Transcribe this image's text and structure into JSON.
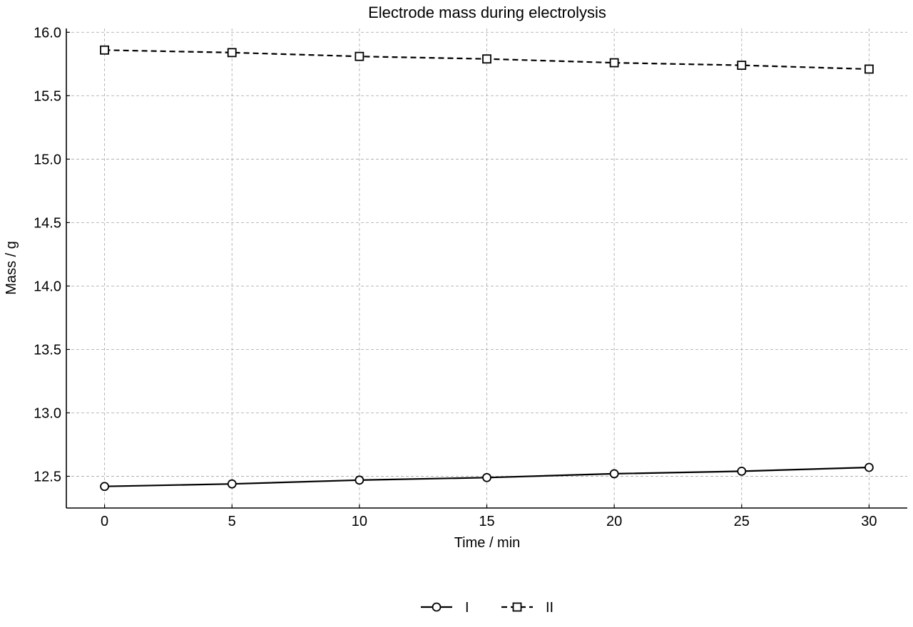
{
  "chart_data": {
    "type": "line",
    "title": "Electrode mass during electrolysis",
    "xlabel": "Time / min",
    "ylabel": "Mass / g",
    "x": [
      0,
      5,
      10,
      15,
      20,
      25,
      30
    ],
    "xticks": [
      0,
      5,
      10,
      15,
      20,
      25,
      30
    ],
    "yticks": [
      12.5,
      13.0,
      13.5,
      14.0,
      14.5,
      15.0,
      15.5,
      16.0
    ],
    "xlim": [
      -1.5,
      31.5
    ],
    "ylim": [
      12.25,
      16.03
    ],
    "grid": true,
    "legend_position": "bottom-center",
    "series": [
      {
        "name": "I",
        "values": [
          12.42,
          12.44,
          12.47,
          12.49,
          12.52,
          12.54,
          12.57
        ],
        "line_style": "solid",
        "marker": "circle",
        "color": "#000000"
      },
      {
        "name": "II",
        "values": [
          15.86,
          15.84,
          15.81,
          15.79,
          15.76,
          15.74,
          15.71
        ],
        "line_style": "dashed",
        "marker": "square",
        "color": "#000000"
      }
    ]
  }
}
